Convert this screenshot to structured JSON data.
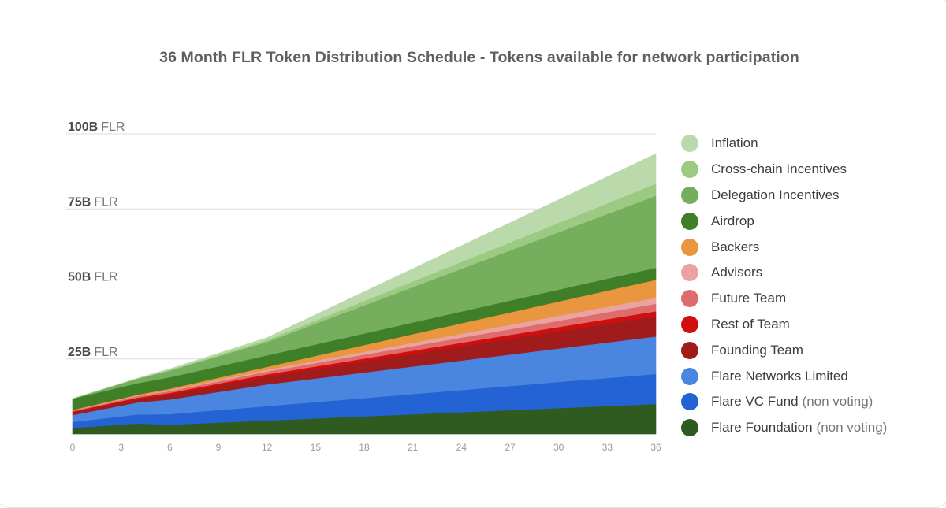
{
  "chart_data": {
    "type": "area",
    "stacked": true,
    "title": "36 Month FLR Token Distribution Schedule - Tokens available for network participation",
    "xlabel": "",
    "ylabel": "",
    "xlim": [
      0,
      36
    ],
    "ylim": [
      0,
      100
    ],
    "x_ticks": [
      "0",
      "3",
      "6",
      "9",
      "12",
      "15",
      "18",
      "21",
      "24",
      "27",
      "30",
      "33",
      "36"
    ],
    "y_ticks": [
      {
        "value": 100,
        "num": "100B",
        "unit": "FLR"
      },
      {
        "value": 75,
        "num": "75B",
        "unit": "FLR"
      },
      {
        "value": 50,
        "num": "50B",
        "unit": "FLR"
      },
      {
        "value": 25,
        "num": "25B",
        "unit": "FLR"
      }
    ],
    "grid": true,
    "legend_position": "right",
    "x": [
      0,
      4,
      6,
      12,
      36
    ],
    "series": [
      {
        "name": "Flare Foundation",
        "note": "(non voting)",
        "color": "#2f5a20",
        "values": [
          2.0,
          3.5,
          3.1,
          4.5,
          10.0
        ]
      },
      {
        "name": "Flare VC Fund",
        "note": "(non voting)",
        "color": "#2463d3",
        "values": [
          2.0,
          3.0,
          3.5,
          4.8,
          10.0
        ]
      },
      {
        "name": "Flare Networks Limited",
        "note": "",
        "color": "#4a86e0",
        "values": [
          2.3,
          4.0,
          4.9,
          7.2,
          12.5
        ]
      },
      {
        "name": "Founding Team",
        "note": "",
        "color": "#a01c1c",
        "values": [
          0.8,
          1.1,
          1.6,
          2.6,
          6.8
        ]
      },
      {
        "name": "Rest of Team",
        "note": "",
        "color": "#d10e0e",
        "values": [
          0.4,
          0.5,
          0.6,
          0.8,
          1.6
        ]
      },
      {
        "name": "Future Team",
        "note": "",
        "color": "#df6c6c",
        "values": [
          0.3,
          0.5,
          0.6,
          0.9,
          2.5
        ]
      },
      {
        "name": "Advisors",
        "note": "",
        "color": "#eaa2a2",
        "values": [
          0.1,
          0.2,
          0.3,
          0.6,
          2.0
        ]
      },
      {
        "name": "Backers",
        "note": "",
        "color": "#e9963f",
        "values": [
          0.1,
          0.3,
          0.5,
          1.0,
          6.0
        ]
      },
      {
        "name": "Airdrop",
        "note": "",
        "color": "#3f7f28",
        "values": [
          3.8,
          3.8,
          3.8,
          3.8,
          4.0
        ]
      },
      {
        "name": "Delegation Incentives",
        "note": "",
        "color": "#75ae5c",
        "values": [
          0.0,
          1.5,
          2.2,
          4.5,
          24.0
        ]
      },
      {
        "name": "Cross-chain Incentives",
        "note": "",
        "color": "#9cca82",
        "values": [
          0.0,
          0.1,
          0.3,
          0.6,
          4.0
        ]
      },
      {
        "name": "Inflation",
        "note": "",
        "color": "#bbdaab",
        "values": [
          0.0,
          0.1,
          0.3,
          0.8,
          10.0
        ]
      }
    ]
  }
}
